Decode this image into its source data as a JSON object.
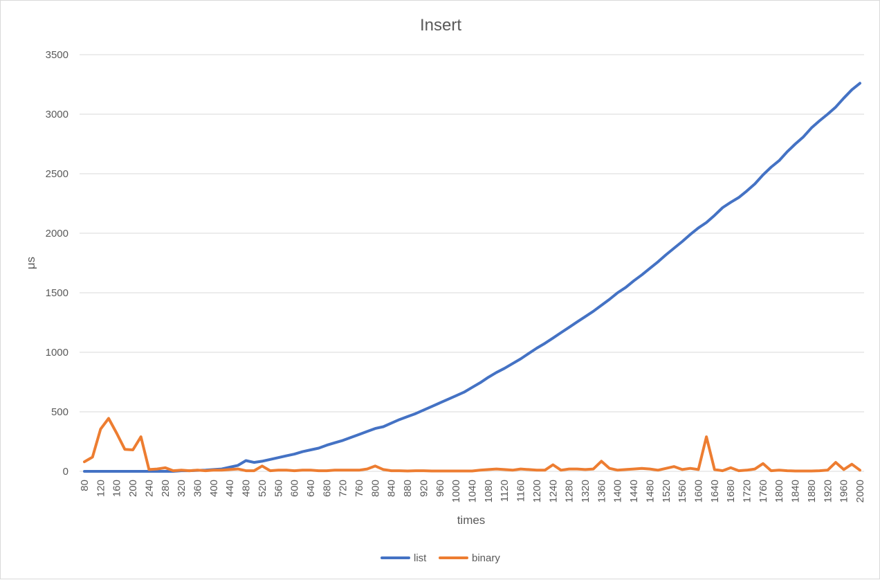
{
  "chart_data": {
    "type": "line",
    "title": "Insert",
    "xlabel": "times",
    "ylabel": "μs",
    "ylim": [
      0,
      3500
    ],
    "yticks": [
      0,
      500,
      1000,
      1500,
      2000,
      2500,
      3000,
      3500
    ],
    "grid": true,
    "legend": "bottom",
    "categories": [
      80,
      100,
      120,
      140,
      160,
      180,
      200,
      220,
      240,
      260,
      280,
      300,
      320,
      340,
      360,
      380,
      400,
      420,
      440,
      460,
      480,
      500,
      520,
      540,
      560,
      580,
      600,
      620,
      640,
      660,
      680,
      700,
      720,
      740,
      760,
      780,
      800,
      820,
      840,
      860,
      880,
      900,
      920,
      940,
      960,
      980,
      1000,
      1020,
      1040,
      1060,
      1080,
      1100,
      1120,
      1140,
      1160,
      1180,
      1200,
      1220,
      1240,
      1260,
      1280,
      1300,
      1320,
      1340,
      1360,
      1380,
      1400,
      1420,
      1440,
      1460,
      1480,
      1500,
      1520,
      1540,
      1560,
      1580,
      1600,
      1620,
      1640,
      1660,
      1680,
      1700,
      1720,
      1740,
      1760,
      1780,
      1800,
      1820,
      1840,
      1860,
      1880,
      1900,
      1920,
      1940,
      1960,
      1980,
      2000
    ],
    "tick_labels": [
      "80",
      "120",
      "160",
      "200",
      "240",
      "280",
      "320",
      "360",
      "400",
      "440",
      "480",
      "520",
      "560",
      "600",
      "640",
      "680",
      "720",
      "760",
      "800",
      "840",
      "880",
      "920",
      "960",
      "1000",
      "1040",
      "1080",
      "1120",
      "1160",
      "1200",
      "1240",
      "1280",
      "1320",
      "1360",
      "1400",
      "1440",
      "1480",
      "1520",
      "1560",
      "1600",
      "1640",
      "1680",
      "1720",
      "1760",
      "1800",
      "1840",
      "1880",
      "1920",
      "1960",
      "2000"
    ],
    "series": [
      {
        "name": "list",
        "color": "#4472c4",
        "values": [
          0,
          0,
          0,
          0,
          0,
          0,
          0,
          0,
          0,
          0,
          0,
          0,
          5,
          5,
          8,
          10,
          15,
          20,
          35,
          50,
          90,
          75,
          85,
          100,
          115,
          130,
          145,
          165,
          180,
          195,
          220,
          240,
          260,
          285,
          310,
          335,
          360,
          375,
          405,
          435,
          460,
          485,
          515,
          545,
          575,
          605,
          635,
          665,
          705,
          745,
          790,
          830,
          865,
          905,
          945,
          990,
          1035,
          1075,
          1120,
          1165,
          1210,
          1255,
          1300,
          1345,
          1395,
          1445,
          1500,
          1545,
          1600,
          1650,
          1705,
          1760,
          1820,
          1875,
          1930,
          1990,
          2045,
          2090,
          2150,
          2215,
          2260,
          2300,
          2355,
          2415,
          2490,
          2555,
          2610,
          2685,
          2750,
          2810,
          2885,
          2945,
          3000,
          3060,
          3135,
          3205,
          3260
        ]
      },
      {
        "name": "binary",
        "color": "#ed7d31",
        "values": [
          80,
          120,
          355,
          445,
          320,
          185,
          180,
          290,
          15,
          20,
          30,
          5,
          10,
          5,
          10,
          5,
          10,
          10,
          15,
          20,
          5,
          5,
          45,
          5,
          10,
          10,
          5,
          10,
          10,
          5,
          5,
          10,
          10,
          10,
          10,
          20,
          45,
          15,
          5,
          5,
          3,
          5,
          5,
          3,
          3,
          3,
          3,
          3,
          3,
          10,
          15,
          20,
          15,
          10,
          20,
          15,
          10,
          10,
          55,
          10,
          20,
          20,
          15,
          20,
          85,
          25,
          10,
          15,
          20,
          25,
          20,
          10,
          25,
          40,
          15,
          25,
          15,
          290,
          15,
          5,
          30,
          5,
          10,
          20,
          65,
          5,
          10,
          5,
          3,
          3,
          3,
          5,
          10,
          75,
          15,
          60,
          10
        ]
      }
    ]
  }
}
